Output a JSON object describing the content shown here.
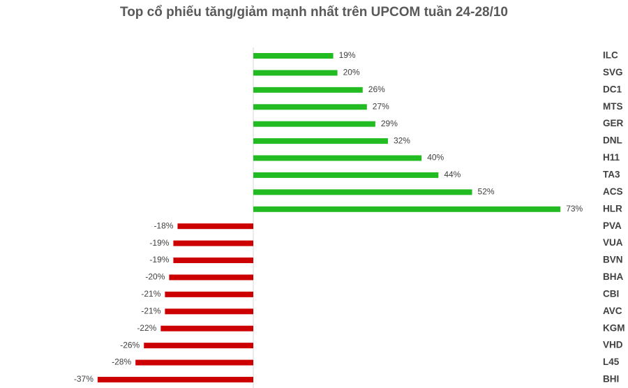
{
  "chart_data": {
    "type": "bar",
    "orientation": "horizontal",
    "title": "Top cổ phiếu tăng/giảm mạnh nhất trên UPCOM tuần 24-28/10",
    "categories": [
      "ILC",
      "SVG",
      "DC1",
      "MTS",
      "GER",
      "DNL",
      "H11",
      "TA3",
      "ACS",
      "HLR",
      "PVA",
      "VUA",
      "BVN",
      "BHA",
      "CBI",
      "AVC",
      "KGM",
      "VHD",
      "L45",
      "BHI"
    ],
    "values": [
      19,
      20,
      26,
      27,
      29,
      32,
      40,
      44,
      52,
      73,
      -18,
      -19,
      -19,
      -20,
      -21,
      -21,
      -22,
      -26,
      -28,
      -37
    ],
    "value_labels": [
      "19%",
      "20%",
      "26%",
      "27%",
      "29%",
      "32%",
      "40%",
      "44%",
      "52%",
      "73%",
      "-18%",
      "-19%",
      "-19%",
      "-20%",
      "-21%",
      "-21%",
      "-22%",
      "-26%",
      "-28%",
      "-37%"
    ],
    "positive_color": "#22bb22",
    "negative_color": "#cc0000",
    "xlim": [
      -40,
      80
    ]
  }
}
